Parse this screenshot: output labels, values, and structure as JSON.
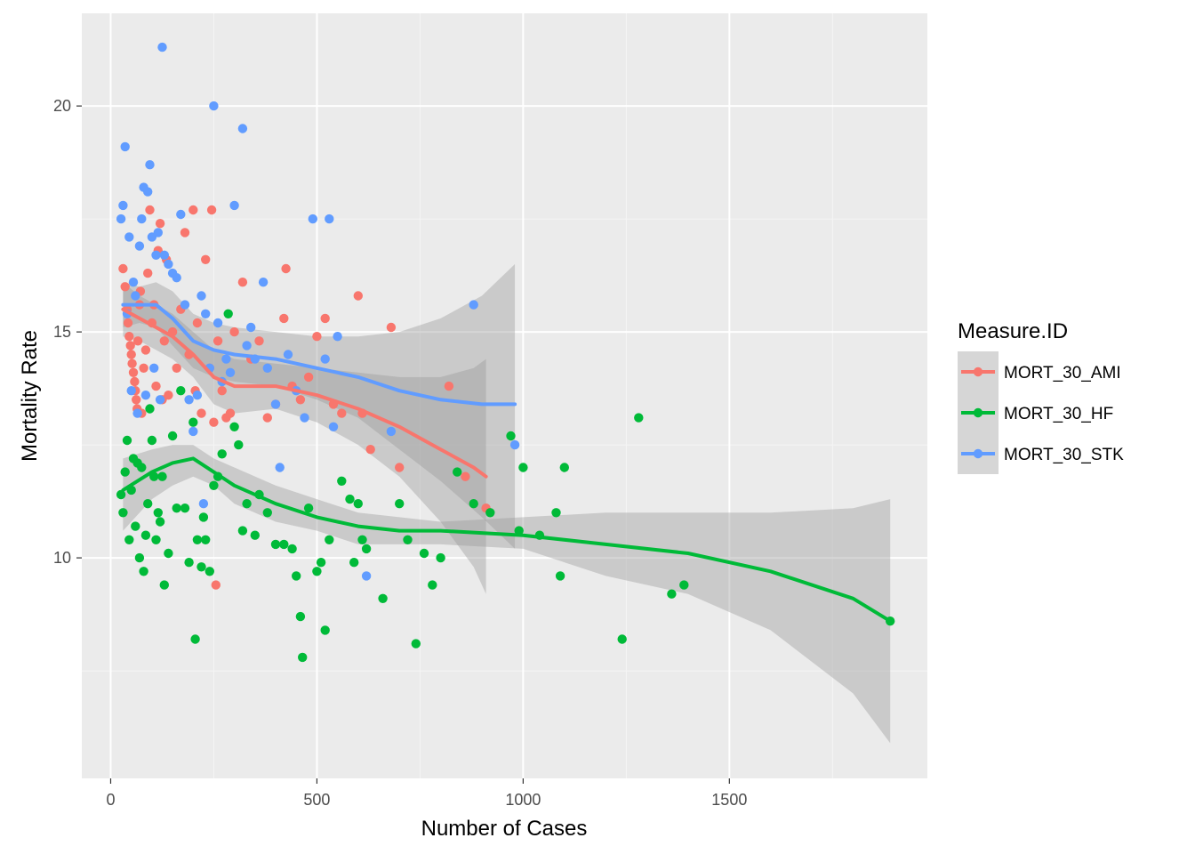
{
  "chart_data": {
    "type": "scatter",
    "xlabel": "Number of Cases",
    "ylabel": "Mortality Rate",
    "xlim": [
      -70,
      1980
    ],
    "ylim": [
      5.12,
      22.05
    ],
    "x_ticks": [
      0,
      500,
      1000,
      1500
    ],
    "y_ticks": [
      10,
      15,
      20
    ],
    "grid": true,
    "legend": {
      "title": "Measure.ID",
      "placement": "right"
    },
    "smoother": "loess with confidence band",
    "series": [
      {
        "name": "MORT_30_AMI",
        "color": "#F8766D",
        "points": [
          [
            30,
            16.4
          ],
          [
            35,
            16
          ],
          [
            40,
            15.5
          ],
          [
            42,
            15.2
          ],
          [
            45,
            14.9
          ],
          [
            48,
            14.7
          ],
          [
            50,
            14.5
          ],
          [
            52,
            14.3
          ],
          [
            55,
            14.1
          ],
          [
            58,
            13.9
          ],
          [
            60,
            13.7
          ],
          [
            62,
            13.5
          ],
          [
            64,
            13.3
          ],
          [
            66,
            14.8
          ],
          [
            70,
            15.6
          ],
          [
            72,
            15.9
          ],
          [
            75,
            13.2
          ],
          [
            80,
            14.2
          ],
          [
            85,
            14.6
          ],
          [
            90,
            16.3
          ],
          [
            95,
            17.7
          ],
          [
            100,
            15.2
          ],
          [
            105,
            15.6
          ],
          [
            110,
            13.8
          ],
          [
            115,
            16.8
          ],
          [
            120,
            17.4
          ],
          [
            125,
            13.5
          ],
          [
            130,
            14.8
          ],
          [
            135,
            16.6
          ],
          [
            140,
            13.6
          ],
          [
            150,
            15
          ],
          [
            160,
            14.2
          ],
          [
            170,
            15.5
          ],
          [
            180,
            17.2
          ],
          [
            190,
            14.5
          ],
          [
            200,
            17.7
          ],
          [
            205,
            13.7
          ],
          [
            210,
            15.2
          ],
          [
            220,
            13.2
          ],
          [
            230,
            16.6
          ],
          [
            240,
            14.2
          ],
          [
            245,
            17.7
          ],
          [
            250,
            13
          ],
          [
            255,
            9.4
          ],
          [
            260,
            14.8
          ],
          [
            270,
            13.7
          ],
          [
            280,
            13.1
          ],
          [
            290,
            13.2
          ],
          [
            300,
            15
          ],
          [
            320,
            16.1
          ],
          [
            340,
            14.4
          ],
          [
            360,
            14.8
          ],
          [
            380,
            13.1
          ],
          [
            400,
            13.4
          ],
          [
            420,
            15.3
          ],
          [
            425,
            16.4
          ],
          [
            440,
            13.8
          ],
          [
            460,
            13.5
          ],
          [
            480,
            14
          ],
          [
            500,
            14.9
          ],
          [
            520,
            15.3
          ],
          [
            540,
            13.4
          ],
          [
            560,
            13.2
          ],
          [
            600,
            15.8
          ],
          [
            610,
            13.2
          ],
          [
            630,
            12.4
          ],
          [
            680,
            15.1
          ],
          [
            700,
            12
          ],
          [
            820,
            13.8
          ],
          [
            860,
            11.8
          ],
          [
            910,
            11.1
          ]
        ]
      },
      {
        "name": "MORT_30_HF",
        "color": "#00BA38",
        "points": [
          [
            25,
            11.4
          ],
          [
            30,
            11
          ],
          [
            35,
            11.9
          ],
          [
            40,
            12.6
          ],
          [
            45,
            10.4
          ],
          [
            50,
            11.5
          ],
          [
            55,
            12.2
          ],
          [
            60,
            10.7
          ],
          [
            65,
            12.1
          ],
          [
            70,
            10
          ],
          [
            75,
            12
          ],
          [
            80,
            9.7
          ],
          [
            85,
            10.5
          ],
          [
            90,
            11.2
          ],
          [
            95,
            13.3
          ],
          [
            100,
            12.6
          ],
          [
            105,
            11.8
          ],
          [
            110,
            10.4
          ],
          [
            115,
            11
          ],
          [
            120,
            10.8
          ],
          [
            125,
            11.8
          ],
          [
            130,
            9.4
          ],
          [
            140,
            10.1
          ],
          [
            150,
            12.7
          ],
          [
            160,
            11.1
          ],
          [
            170,
            13.7
          ],
          [
            180,
            11.1
          ],
          [
            190,
            9.9
          ],
          [
            200,
            13
          ],
          [
            205,
            8.2
          ],
          [
            210,
            10.4
          ],
          [
            220,
            9.8
          ],
          [
            225,
            10.9
          ],
          [
            230,
            10.4
          ],
          [
            240,
            9.7
          ],
          [
            250,
            11.6
          ],
          [
            260,
            11.8
          ],
          [
            270,
            12.3
          ],
          [
            285,
            15.4
          ],
          [
            300,
            12.9
          ],
          [
            310,
            12.5
          ],
          [
            320,
            10.6
          ],
          [
            330,
            11.2
          ],
          [
            350,
            10.5
          ],
          [
            360,
            11.4
          ],
          [
            380,
            11
          ],
          [
            400,
            10.3
          ],
          [
            420,
            10.3
          ],
          [
            440,
            10.2
          ],
          [
            450,
            9.6
          ],
          [
            460,
            8.7
          ],
          [
            465,
            7.8
          ],
          [
            480,
            11.1
          ],
          [
            500,
            9.7
          ],
          [
            510,
            9.9
          ],
          [
            520,
            8.4
          ],
          [
            530,
            10.4
          ],
          [
            560,
            11.7
          ],
          [
            580,
            11.3
          ],
          [
            590,
            9.9
          ],
          [
            600,
            11.2
          ],
          [
            610,
            10.4
          ],
          [
            620,
            10.2
          ],
          [
            660,
            9.1
          ],
          [
            700,
            11.2
          ],
          [
            720,
            10.4
          ],
          [
            740,
            8.1
          ],
          [
            760,
            10.1
          ],
          [
            780,
            9.4
          ],
          [
            800,
            10
          ],
          [
            840,
            11.9
          ],
          [
            880,
            11.2
          ],
          [
            920,
            11
          ],
          [
            970,
            12.7
          ],
          [
            990,
            10.6
          ],
          [
            1000,
            12
          ],
          [
            1040,
            10.5
          ],
          [
            1080,
            11
          ],
          [
            1090,
            9.6
          ],
          [
            1100,
            12
          ],
          [
            1240,
            8.2
          ],
          [
            1280,
            13.1
          ],
          [
            1360,
            9.2
          ],
          [
            1390,
            9.4
          ],
          [
            1890,
            8.6
          ]
        ]
      },
      {
        "name": "MORT_30_STK",
        "color": "#619CFF",
        "points": [
          [
            25,
            17.5
          ],
          [
            30,
            17.8
          ],
          [
            35,
            19.1
          ],
          [
            40,
            15.4
          ],
          [
            45,
            17.1
          ],
          [
            50,
            13.7
          ],
          [
            55,
            16.1
          ],
          [
            60,
            15.8
          ],
          [
            65,
            13.2
          ],
          [
            70,
            16.9
          ],
          [
            75,
            17.5
          ],
          [
            80,
            18.2
          ],
          [
            85,
            13.6
          ],
          [
            90,
            18.1
          ],
          [
            95,
            18.7
          ],
          [
            100,
            17.1
          ],
          [
            105,
            14.2
          ],
          [
            110,
            16.7
          ],
          [
            115,
            17.2
          ],
          [
            120,
            13.5
          ],
          [
            125,
            21.3
          ],
          [
            130,
            16.7
          ],
          [
            140,
            16.5
          ],
          [
            150,
            16.3
          ],
          [
            160,
            16.2
          ],
          [
            170,
            17.6
          ],
          [
            180,
            15.6
          ],
          [
            190,
            13.5
          ],
          [
            200,
            12.8
          ],
          [
            210,
            13.6
          ],
          [
            220,
            15.8
          ],
          [
            225,
            11.2
          ],
          [
            230,
            15.4
          ],
          [
            240,
            14.2
          ],
          [
            250,
            20
          ],
          [
            260,
            15.2
          ],
          [
            270,
            13.9
          ],
          [
            280,
            14.4
          ],
          [
            290,
            14.1
          ],
          [
            300,
            17.8
          ],
          [
            320,
            19.5
          ],
          [
            330,
            14.7
          ],
          [
            340,
            15.1
          ],
          [
            350,
            14.4
          ],
          [
            370,
            16.1
          ],
          [
            380,
            14.2
          ],
          [
            400,
            13.4
          ],
          [
            410,
            12
          ],
          [
            430,
            14.5
          ],
          [
            450,
            13.7
          ],
          [
            470,
            13.1
          ],
          [
            490,
            17.5
          ],
          [
            520,
            14.4
          ],
          [
            530,
            17.5
          ],
          [
            540,
            12.9
          ],
          [
            550,
            14.9
          ],
          [
            620,
            9.6
          ],
          [
            680,
            12.8
          ],
          [
            880,
            15.6
          ],
          [
            980,
            12.5
          ]
        ]
      }
    ],
    "smooth_lines": [
      {
        "name": "MORT_30_AMI",
        "x": [
          30,
          70,
          110,
          150,
          200,
          250,
          300,
          400,
          500,
          600,
          700,
          800,
          880,
          910
        ],
        "y": [
          15.5,
          15.3,
          15.1,
          14.9,
          14.5,
          14,
          13.8,
          13.8,
          13.6,
          13.3,
          12.9,
          12.4,
          12,
          11.8
        ],
        "upper": [
          16.1,
          15.8,
          15.6,
          15.4,
          15,
          14.6,
          14.4,
          14.3,
          14.2,
          14.1,
          14,
          14,
          14.2,
          14.4
        ],
        "lower": [
          14.9,
          14.8,
          14.6,
          14.4,
          14,
          13.4,
          13.2,
          13.3,
          13,
          12.5,
          11.8,
          10.8,
          9.8,
          9.2
        ]
      },
      {
        "name": "MORT_30_HF",
        "x": [
          30,
          100,
          150,
          200,
          250,
          300,
          400,
          500,
          600,
          700,
          800,
          1000,
          1200,
          1400,
          1600,
          1800,
          1890
        ],
        "y": [
          11.5,
          11.9,
          12.1,
          12.2,
          11.9,
          11.6,
          11.2,
          10.9,
          10.7,
          10.6,
          10.6,
          10.5,
          10.3,
          10.1,
          9.7,
          9.1,
          8.6
        ],
        "upper": [
          12.2,
          12.4,
          12.5,
          12.5,
          12.2,
          12,
          11.6,
          11.3,
          11,
          10.9,
          10.8,
          10.9,
          11,
          11,
          11,
          11.1,
          11.3
        ],
        "lower": [
          10.6,
          11.3,
          11.6,
          11.8,
          11.6,
          11.2,
          10.8,
          10.6,
          10.3,
          10.3,
          10.3,
          10.2,
          9.6,
          9.2,
          8.4,
          7,
          5.9
        ]
      },
      {
        "name": "MORT_30_STK",
        "x": [
          30,
          70,
          110,
          150,
          200,
          250,
          300,
          400,
          500,
          600,
          700,
          800,
          900,
          980
        ],
        "y": [
          15.6,
          15.6,
          15.6,
          15.3,
          14.8,
          14.6,
          14.5,
          14.4,
          14.2,
          14,
          13.7,
          13.5,
          13.4,
          13.4
        ],
        "upper": [
          16.1,
          16,
          16.1,
          15.9,
          15.4,
          15.2,
          15.1,
          15,
          14.9,
          14.9,
          15,
          15.3,
          15.8,
          16.5
        ],
        "lower": [
          15.1,
          15.2,
          15.1,
          14.7,
          14.2,
          14,
          13.9,
          13.8,
          13.5,
          13.1,
          12.4,
          11.7,
          10.9,
          10.2
        ]
      }
    ]
  }
}
